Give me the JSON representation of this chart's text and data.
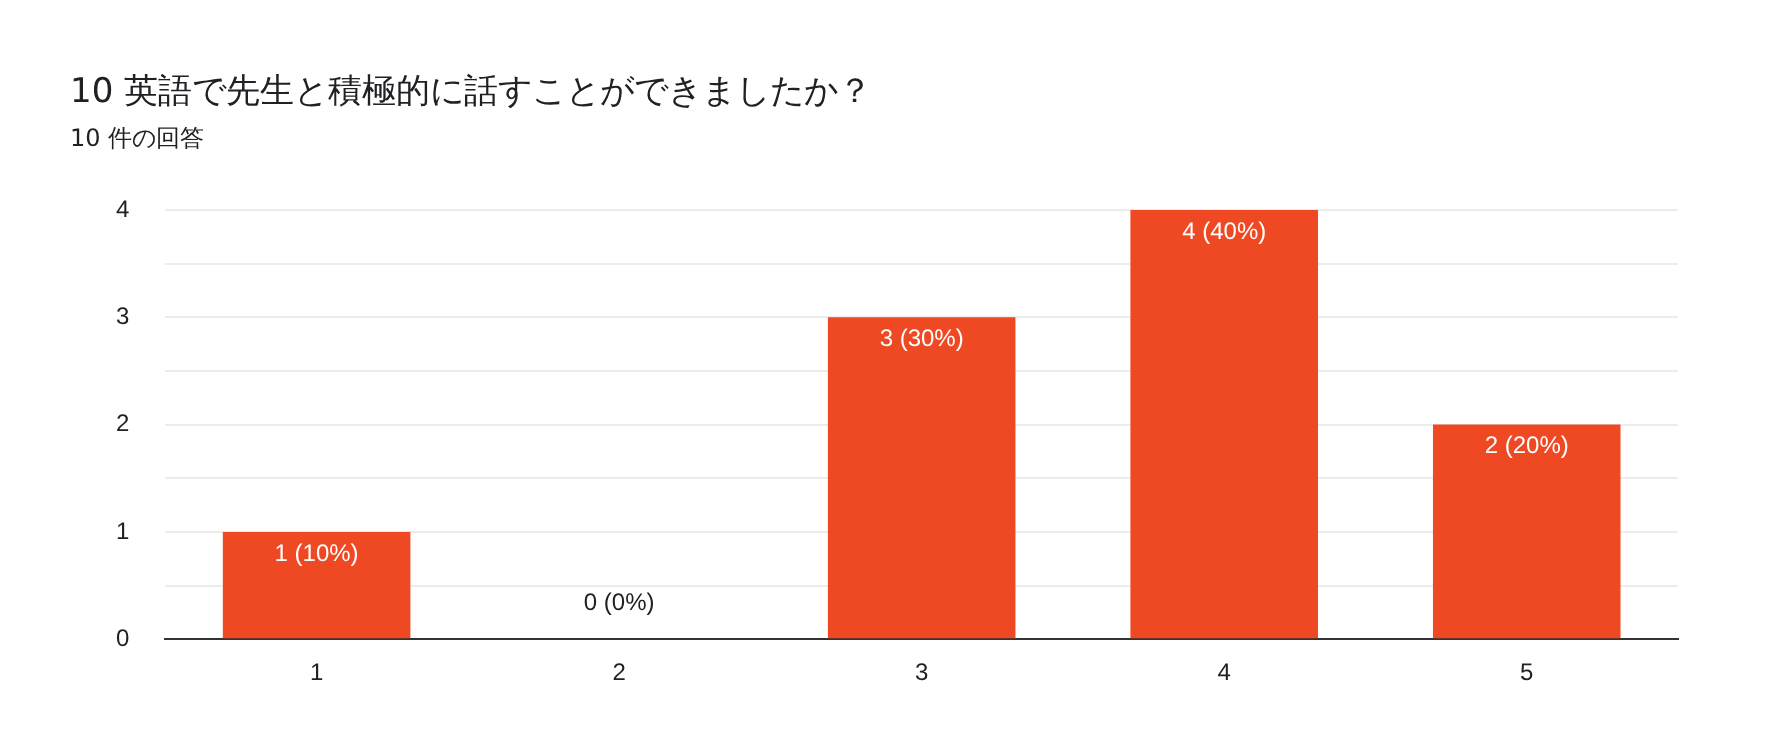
{
  "chart_data": {
    "type": "bar",
    "title": "10 英語で先生と積極的に話すことができましたか？",
    "subtitle": "10 件の回答",
    "categories": [
      "1",
      "2",
      "3",
      "4",
      "5"
    ],
    "values": [
      1,
      0,
      3,
      4,
      2
    ],
    "value_labels": [
      "1 (10%)",
      "0 (0%)",
      "3 (30%)",
      "4 (40%)",
      "2 (20%)"
    ],
    "color": "#ee4923",
    "ylim": [
      0,
      4
    ],
    "yticks": [
      0,
      {
        "value": 0.5,
        "label": null
      },
      1,
      {
        "value": 1.5,
        "label": null
      },
      2,
      {
        "value": 2.5,
        "label": null
      },
      3,
      {
        "value": 3.5,
        "label": null
      },
      4
    ],
    "grid": "y",
    "legend": false
  }
}
